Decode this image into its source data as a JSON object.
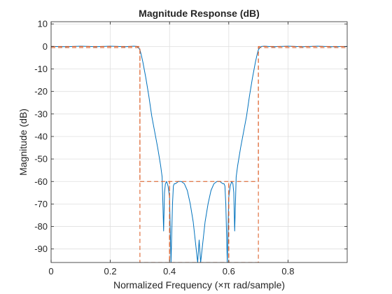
{
  "chart_data": {
    "type": "line",
    "title": "Magnitude Response (dB)",
    "xlabel": "Normalized Frequency (×π rad/sample)",
    "ylabel": "Magnitude (dB)",
    "xlim": [
      0,
      1
    ],
    "ylim": [
      -96,
      11
    ],
    "grid": true,
    "x_ticks": [
      0,
      0.2,
      0.4,
      0.6,
      0.8
    ],
    "x_tick_labels": [
      "0",
      "0.2",
      "0.4",
      "0.6",
      "0.8"
    ],
    "y_ticks": [
      10,
      0,
      -10,
      -20,
      -30,
      -40,
      -50,
      -60,
      -70,
      -80,
      -90
    ],
    "y_tick_labels": [
      "10",
      "0",
      "-10",
      "-20",
      "-30",
      "-40",
      "-50",
      "-60",
      "-70",
      "-80",
      "-90"
    ],
    "series": [
      {
        "role": "response",
        "color": "#0072bd",
        "style": "solid",
        "x": [
          0,
          0.05,
          0.1,
          0.15,
          0.2,
          0.25,
          0.28,
          0.29,
          0.295,
          0.3,
          0.305,
          0.31,
          0.32,
          0.33,
          0.34,
          0.35,
          0.36,
          0.37,
          0.375,
          0.38,
          0.383,
          0.386,
          0.39,
          0.395,
          0.4,
          0.405,
          0.41,
          0.413,
          0.416,
          0.42,
          0.43,
          0.44,
          0.45,
          0.46,
          0.47,
          0.48,
          0.49,
          0.495,
          0.5,
          0.505,
          0.51,
          0.52,
          0.53,
          0.54,
          0.55,
          0.56,
          0.57,
          0.58,
          0.584,
          0.587,
          0.59,
          0.595,
          0.6,
          0.605,
          0.61,
          0.614,
          0.617,
          0.62,
          0.625,
          0.63,
          0.64,
          0.65,
          0.66,
          0.67,
          0.68,
          0.69,
          0.695,
          0.7,
          0.705,
          0.71,
          0.72,
          0.75,
          0.8,
          0.85,
          0.9,
          0.95,
          1.0
        ],
        "y": [
          0,
          -0.1,
          0.1,
          -0.1,
          0.1,
          -0.1,
          0.1,
          0,
          -0.5,
          -1.5,
          -4,
          -7,
          -14,
          -22,
          -31,
          -38,
          -45,
          -53,
          -58,
          -82,
          -65,
          -61,
          -60,
          -62,
          -67,
          -96,
          -70,
          -62,
          -61,
          -61,
          -60,
          -60,
          -61,
          -64,
          -70,
          -78,
          -90,
          -96,
          -86,
          -96,
          -90,
          -78,
          -70,
          -64,
          -61,
          -60,
          -60,
          -61,
          -61,
          -62,
          -70,
          -96,
          -67,
          -62,
          -60,
          -61,
          -65,
          -82,
          -58,
          -53,
          -45,
          -38,
          -31,
          -22,
          -14,
          -7,
          -4,
          -1.5,
          -0.5,
          0,
          0.1,
          -0.1,
          0.1,
          -0.1,
          0.1,
          -0.1,
          0
        ]
      },
      {
        "role": "specification-mask",
        "color": "#d95319",
        "style": "dashed",
        "x": [
          0,
          0.3,
          0.3,
          0.4,
          0.4,
          0.6,
          0.6,
          0.7,
          0.7,
          1.0
        ],
        "y": [
          0,
          0,
          -60,
          -60,
          -96,
          -96,
          -60,
          -60,
          0,
          0
        ]
      },
      {
        "role": "specification-mask",
        "color": "#d95319",
        "style": "dashed",
        "x": [
          0,
          0.3,
          0.3,
          0.4,
          0.4,
          0.6,
          0.6,
          0.7,
          0.7,
          1.0
        ],
        "y": [
          -0.5,
          -0.5,
          -96,
          -96,
          -60,
          -60,
          -96,
          -96,
          -0.5,
          -0.5
        ]
      }
    ]
  }
}
